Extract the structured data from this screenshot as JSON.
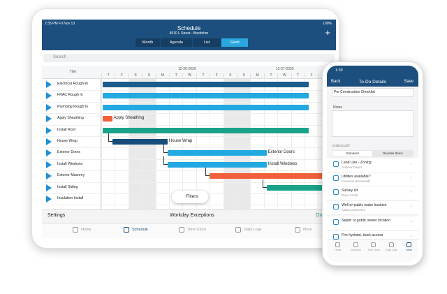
{
  "tablet": {
    "status_time": "2:35 PM  Fri Nov 13",
    "battery": "100%",
    "title": "Schedule",
    "subtitle": "4510 L Street - Boettcher",
    "tabs": [
      "Month",
      "Agenda",
      "List",
      "Gantt"
    ],
    "search": "Search",
    "column_title": "Title",
    "dates": [
      "12-20-2020",
      "12-27-2020"
    ],
    "days": [
      "T",
      "F",
      "S",
      "S",
      "M",
      "T",
      "W",
      "T",
      "F",
      "S",
      "S",
      "M",
      "T",
      "W",
      "T",
      "F",
      "S"
    ],
    "tasks": [
      "Electrical Rough-In",
      "HVAC Rough In",
      "Plumbing Rough In",
      "Apply Sheathing",
      "Install Roof",
      "House Wrap",
      "Exterior Doors",
      "Install Windows",
      "Exterior Masonry",
      "Install Siding",
      "Insulation Install"
    ],
    "bar_labels": [
      "Apply Sheathing",
      "House Wrap",
      "Exterior Doors",
      "Install Windows"
    ],
    "filters": "Filters",
    "settings": "Settings",
    "workday": "Workday Exceptions",
    "on": "On",
    "nav": [
      "Home",
      "Schedule",
      "Time Clock",
      "Daily Logs",
      "More"
    ]
  },
  "phone": {
    "status_time": "1:30",
    "back": "Back",
    "title": "To-Do Details",
    "save": "Save",
    "field": "Pre Construction Checklist",
    "notes": "Notes",
    "checklist": "CHECKLIST",
    "tabs": [
      "Standard",
      "Reorder Items"
    ],
    "items": [
      {
        "title": "Land Use - Zoning",
        "assignee": "Andrew Dwyer"
      },
      {
        "title": "Utilities available?",
        "assignee": "Cameron Bosnewski"
      },
      {
        "title": "Survey lot",
        "assignee": "Dave Smith"
      },
      {
        "title": "Well or public water location",
        "assignee": "Adam Mortensen"
      },
      {
        "title": "Septic or public sewer location"
      },
      {
        "title": "Fire hydrant, truck access"
      }
    ],
    "nav": [
      "Home",
      "Schedule",
      "Time Clock",
      "Daily Logs",
      "More"
    ]
  }
}
